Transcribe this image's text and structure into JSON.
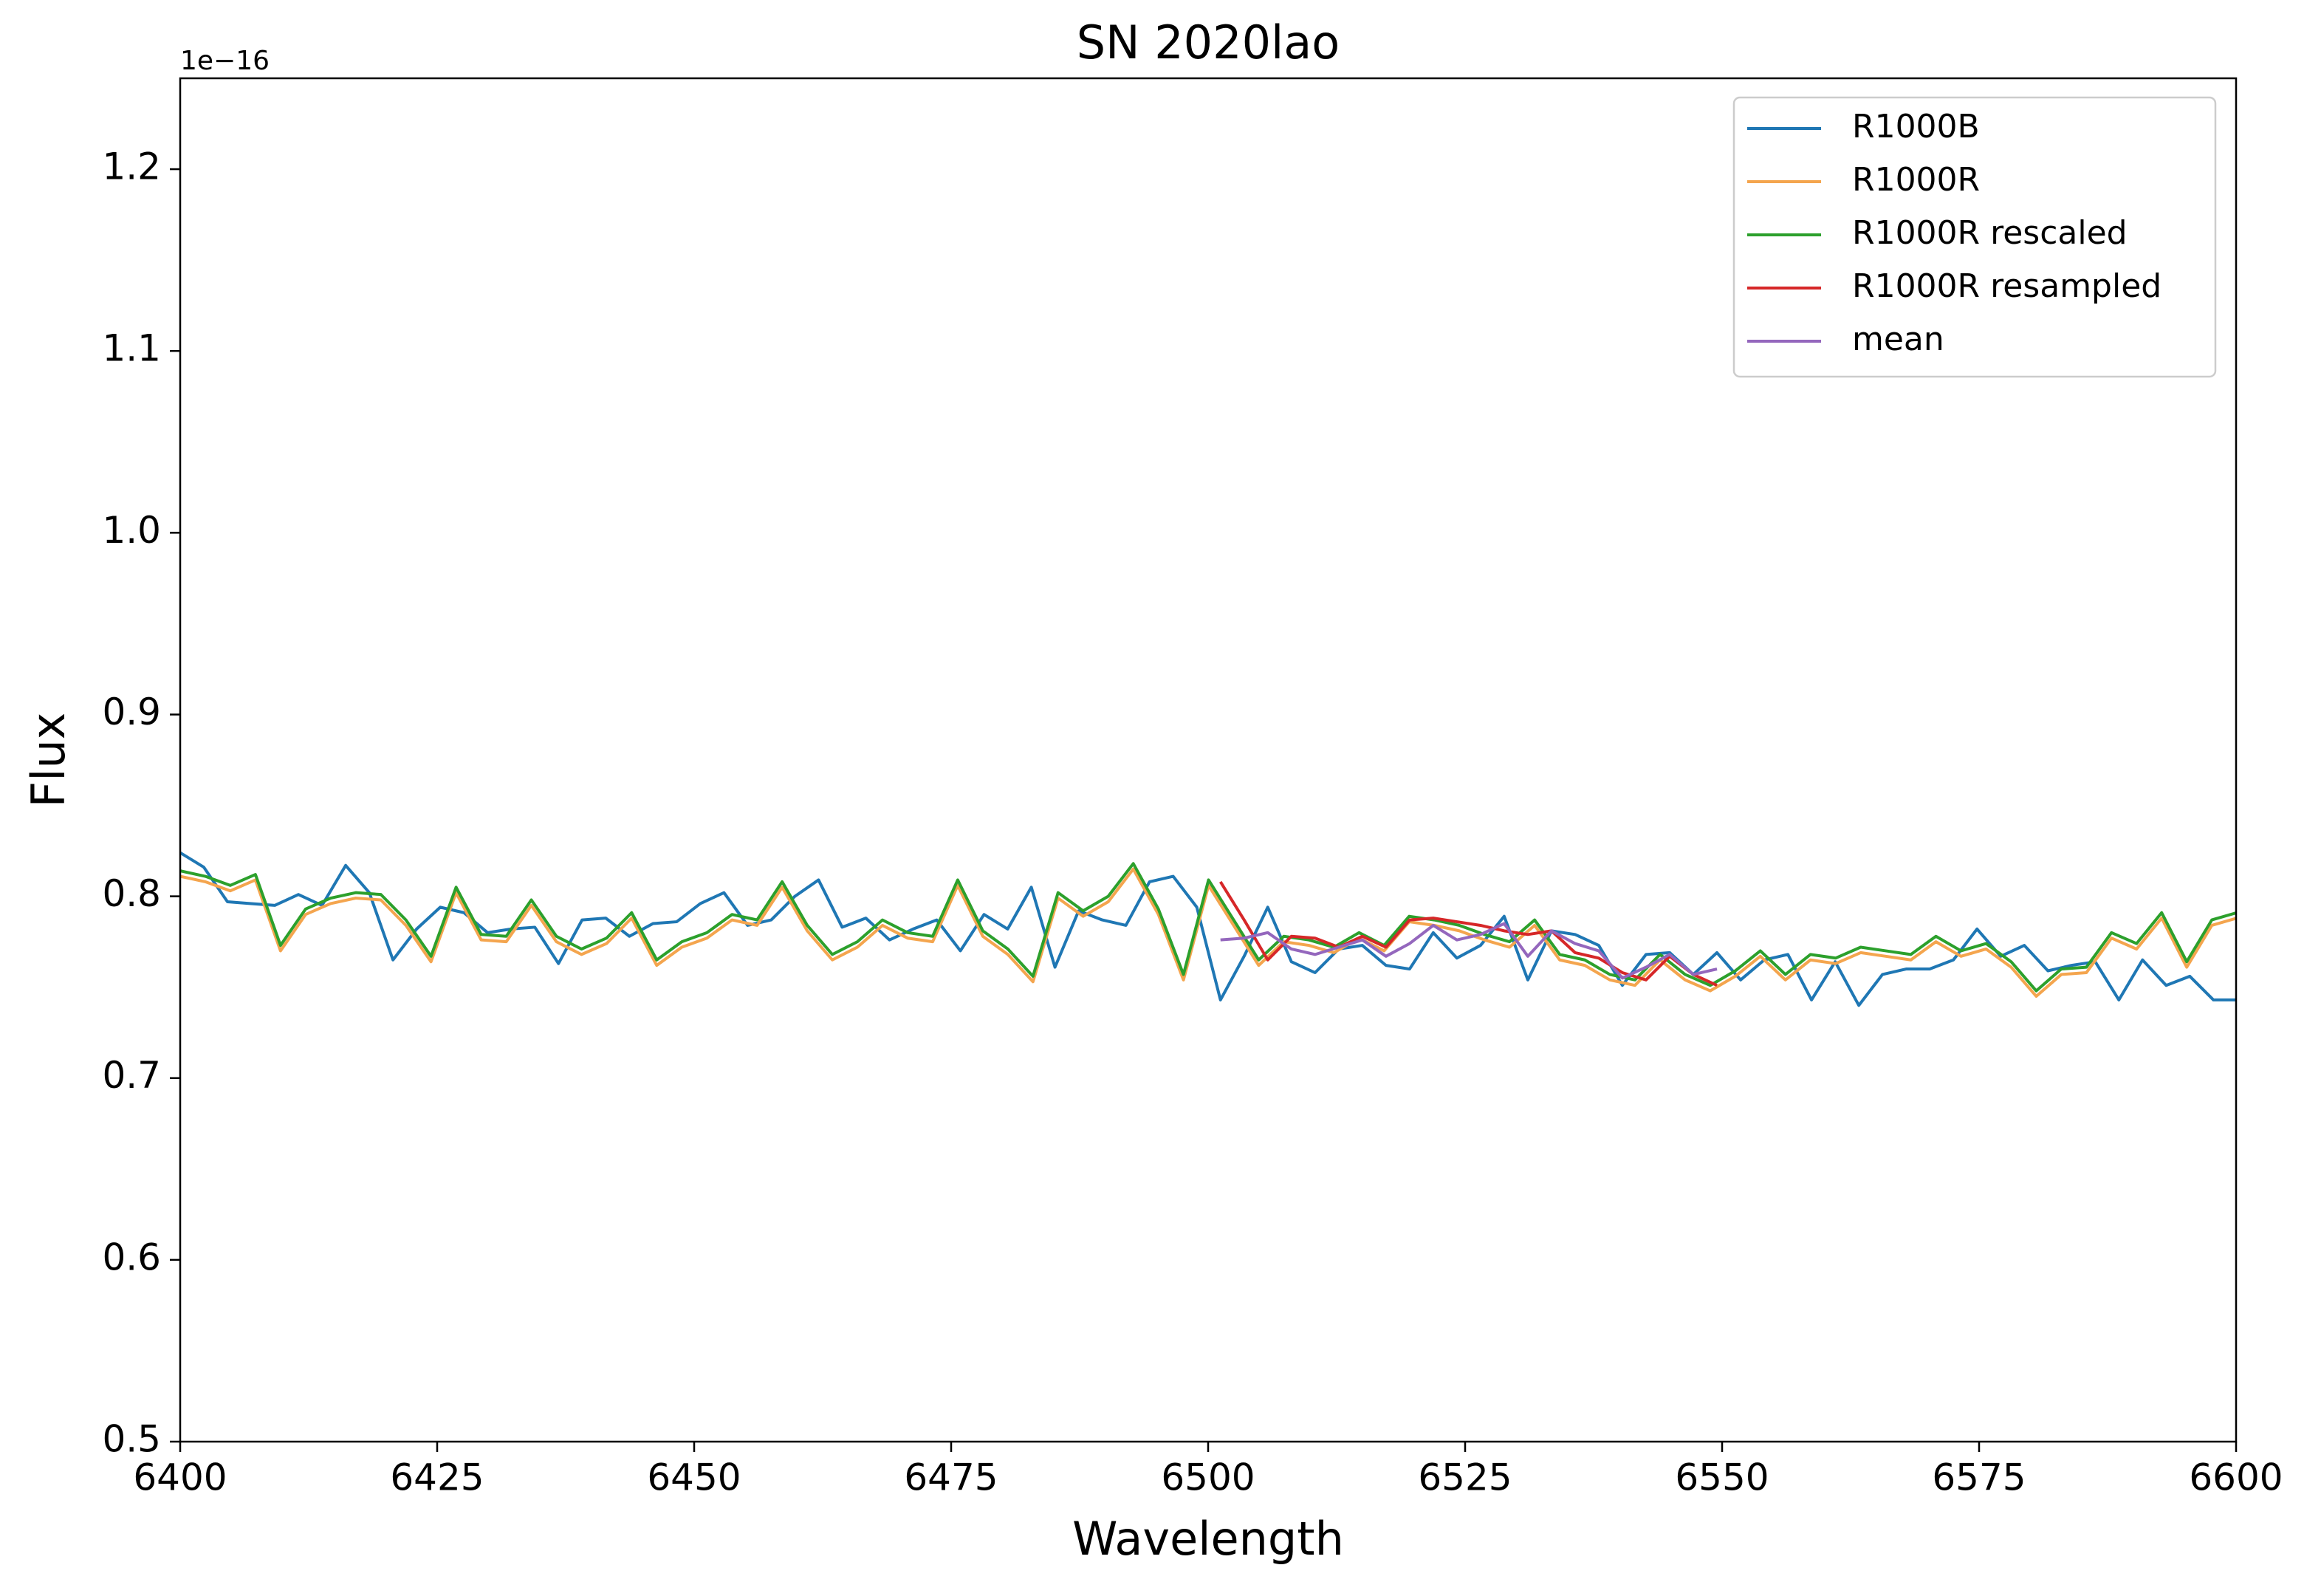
{
  "chart_data": {
    "type": "line",
    "title": "SN 2020lao",
    "x_label": "Wavelength",
    "y_label": "Flux",
    "y_offset_label": "1e−16",
    "xlim": [
      6400,
      6600
    ],
    "xticks": [
      6400,
      6425,
      6450,
      6475,
      6500,
      6525,
      6550,
      6575,
      6600
    ],
    "ylim": [
      0.5,
      1.25
    ],
    "yticks": [
      0.5,
      0.6,
      0.7,
      0.8,
      0.9,
      {
        "value": 1,
        "label": "1.0"
      },
      1.1,
      1.2
    ],
    "legend": "upper right",
    "grid": false,
    "series": [
      {
        "name": "R1000B",
        "color": "#1f77b4",
        "x": [
          6400,
          6402.3,
          6404.6,
          6406.9,
          6409.2,
          6411.5,
          6413.8,
          6416.1,
          6418.4,
          6420.7,
          6423,
          6425.3,
          6427.6,
          6429.9,
          6432.2,
          6434.5,
          6436.8,
          6439.1,
          6441.4,
          6443.7,
          6446,
          6448.3,
          6450.6,
          6452.9,
          6455.2,
          6457.5,
          6459.8,
          6462.1,
          6464.4,
          6466.7,
          6469,
          6471.3,
          6473.6,
          6475.9,
          6478.2,
          6480.5,
          6482.8,
          6485.1,
          6487.4,
          6489.7,
          6492,
          6494.3,
          6496.6,
          6498.9,
          6501.2,
          6503.5,
          6505.8,
          6508.1,
          6510.4,
          6512.7,
          6515,
          6517.3,
          6519.6,
          6521.9,
          6524.2,
          6526.5,
          6528.8,
          6531.1,
          6533.4,
          6535.7,
          6538,
          6540.3,
          6542.6,
          6544.9,
          6547.2,
          6549.5,
          6551.8,
          6554.1,
          6556.4,
          6558.7,
          6561,
          6563.3,
          6565.6,
          6567.9,
          6570.2,
          6572.5,
          6574.8,
          6577.1,
          6579.4,
          6581.7,
          6584,
          6586.3,
          6588.6,
          6590.9,
          6593.2,
          6595.5,
          6597.8,
          6600.1
        ],
        "values": [
          0.824,
          0.816,
          0.797,
          0.796,
          0.795,
          0.801,
          0.795,
          0.817,
          0.802,
          0.765,
          0.782,
          0.794,
          0.791,
          0.78,
          0.782,
          0.783,
          0.763,
          0.787,
          0.788,
          0.778,
          0.785,
          0.786,
          0.796,
          0.802,
          0.784,
          0.787,
          0.8,
          0.809,
          0.783,
          0.788,
          0.776,
          0.782,
          0.787,
          0.77,
          0.79,
          0.782,
          0.805,
          0.761,
          0.792,
          0.787,
          0.784,
          0.808,
          0.811,
          0.794,
          0.743,
          0.767,
          0.794,
          0.764,
          0.758,
          0.771,
          0.773,
          0.762,
          0.76,
          0.78,
          0.766,
          0.773,
          0.789,
          0.754,
          0.781,
          0.779,
          0.773,
          0.751,
          0.768,
          0.769,
          0.757,
          0.769,
          0.754,
          0.765,
          0.768,
          0.743,
          0.764,
          0.74,
          0.757,
          0.76,
          0.76,
          0.765,
          0.782,
          0.767,
          0.773,
          0.759,
          0.762,
          0.764,
          0.743,
          0.765,
          0.751,
          0.756,
          0.743,
          0.743
        ]
      },
      {
        "name": "R1000R",
        "color": "#f4a54e",
        "x": [
          6400,
          6402.44,
          6404.88,
          6407.32,
          6409.76,
          6412.2,
          6414.64,
          6417.08,
          6419.52,
          6421.96,
          6424.4,
          6426.84,
          6429.28,
          6431.72,
          6434.16,
          6436.6,
          6439.04,
          6441.48,
          6443.92,
          6446.36,
          6448.8,
          6451.24,
          6453.68,
          6456.12,
          6458.56,
          6461,
          6463.44,
          6465.88,
          6468.32,
          6470.76,
          6473.2,
          6475.64,
          6478.08,
          6480.52,
          6482.96,
          6485.4,
          6487.84,
          6490.28,
          6492.72,
          6495.16,
          6497.6,
          6500.04,
          6502.48,
          6504.92,
          6507.36,
          6509.8,
          6512.24,
          6514.68,
          6517.12,
          6519.56,
          6522,
          6524.44,
          6526.88,
          6529.32,
          6531.76,
          6534.2,
          6536.64,
          6539.08,
          6541.52,
          6543.96,
          6546.4,
          6548.84,
          6551.28,
          6553.72,
          6556.16,
          6558.6,
          6561.04,
          6563.48,
          6565.92,
          6568.36,
          6570.8,
          6573.24,
          6575.68,
          6578.12,
          6580.56,
          6583,
          6585.44,
          6587.88,
          6590.32,
          6592.76,
          6595.2,
          6597.64,
          6600.08
        ],
        "values": [
          0.811,
          0.808,
          0.803,
          0.809,
          0.77,
          0.79,
          0.796,
          0.799,
          0.798,
          0.784,
          0.764,
          0.802,
          0.776,
          0.775,
          0.795,
          0.775,
          0.768,
          0.774,
          0.788,
          0.762,
          0.772,
          0.777,
          0.787,
          0.784,
          0.805,
          0.781,
          0.765,
          0.772,
          0.784,
          0.777,
          0.775,
          0.806,
          0.778,
          0.768,
          0.753,
          0.799,
          0.789,
          0.797,
          0.815,
          0.79,
          0.754,
          0.806,
          0.784,
          0.762,
          0.775,
          0.773,
          0.769,
          0.777,
          0.77,
          0.786,
          0.784,
          0.781,
          0.776,
          0.772,
          0.784,
          0.765,
          0.762,
          0.754,
          0.751,
          0.765,
          0.754,
          0.748,
          0.756,
          0.767,
          0.754,
          0.765,
          0.763,
          0.769,
          0.767,
          0.765,
          0.775,
          0.767,
          0.771,
          0.761,
          0.745,
          0.757,
          0.758,
          0.777,
          0.771,
          0.788,
          0.761,
          0.784,
          0.788
        ]
      },
      {
        "name": "R1000R rescaled",
        "color": "#2ca02c",
        "x": [
          6400,
          6402.44,
          6404.88,
          6407.32,
          6409.76,
          6412.2,
          6414.64,
          6417.08,
          6419.52,
          6421.96,
          6424.4,
          6426.84,
          6429.28,
          6431.72,
          6434.16,
          6436.6,
          6439.04,
          6441.48,
          6443.92,
          6446.36,
          6448.8,
          6451.24,
          6453.68,
          6456.12,
          6458.56,
          6461,
          6463.44,
          6465.88,
          6468.32,
          6470.76,
          6473.2,
          6475.64,
          6478.08,
          6480.52,
          6482.96,
          6485.4,
          6487.84,
          6490.28,
          6492.72,
          6495.16,
          6497.6,
          6500.04,
          6502.48,
          6504.92,
          6507.36,
          6509.8,
          6512.24,
          6514.68,
          6517.12,
          6519.56,
          6522,
          6524.44,
          6526.88,
          6529.32,
          6531.76,
          6534.2,
          6536.64,
          6539.08,
          6541.52,
          6543.96,
          6546.4,
          6548.84,
          6551.28,
          6553.72,
          6556.16,
          6558.6,
          6561.04,
          6563.48,
          6565.92,
          6568.36,
          6570.8,
          6573.24,
          6575.68,
          6578.12,
          6580.56,
          6583,
          6585.44,
          6587.88,
          6590.32,
          6592.76,
          6595.2,
          6597.64,
          6600.08
        ],
        "values": [
          0.814,
          0.811,
          0.806,
          0.812,
          0.773,
          0.793,
          0.799,
          0.802,
          0.801,
          0.787,
          0.767,
          0.805,
          0.779,
          0.778,
          0.798,
          0.778,
          0.771,
          0.777,
          0.791,
          0.765,
          0.775,
          0.78,
          0.79,
          0.787,
          0.808,
          0.784,
          0.768,
          0.775,
          0.787,
          0.78,
          0.778,
          0.809,
          0.781,
          0.771,
          0.756,
          0.802,
          0.792,
          0.8,
          0.818,
          0.793,
          0.757,
          0.809,
          0.787,
          0.765,
          0.778,
          0.776,
          0.772,
          0.78,
          0.773,
          0.789,
          0.787,
          0.784,
          0.779,
          0.775,
          0.787,
          0.768,
          0.765,
          0.757,
          0.754,
          0.768,
          0.757,
          0.751,
          0.759,
          0.77,
          0.757,
          0.768,
          0.766,
          0.772,
          0.77,
          0.768,
          0.778,
          0.77,
          0.774,
          0.764,
          0.748,
          0.76,
          0.761,
          0.78,
          0.774,
          0.791,
          0.764,
          0.787,
          0.791
        ]
      },
      {
        "name": "R1000R resampled",
        "color": "#d62728",
        "x": [
          6501.2,
          6503.5,
          6505.8,
          6508.1,
          6510.4,
          6512.7,
          6515,
          6517.3,
          6519.6,
          6521.9,
          6524.2,
          6526.5,
          6528.8,
          6531.1,
          6533.4,
          6535.7,
          6538,
          6540.3,
          6542.6,
          6544.9,
          6547.2,
          6549.5
        ],
        "values": [
          0.808,
          0.787,
          0.765,
          0.778,
          0.777,
          0.772,
          0.778,
          0.772,
          0.787,
          0.788,
          0.786,
          0.784,
          0.781,
          0.779,
          0.781,
          0.769,
          0.766,
          0.758,
          0.754,
          0.767,
          0.757,
          0.751
        ]
      },
      {
        "name": "mean",
        "color": "#9467bd",
        "x": [
          6501.2,
          6503.5,
          6505.8,
          6508.1,
          6510.4,
          6512.7,
          6515,
          6517.3,
          6519.6,
          6521.9,
          6524.2,
          6526.5,
          6528.8,
          6531.1,
          6533.4,
          6535.7,
          6538,
          6540.3,
          6542.6,
          6544.9,
          6547.2,
          6549.5
        ],
        "values": [
          0.776,
          0.777,
          0.78,
          0.771,
          0.768,
          0.772,
          0.776,
          0.767,
          0.774,
          0.784,
          0.776,
          0.779,
          0.785,
          0.767,
          0.781,
          0.774,
          0.77,
          0.755,
          0.761,
          0.768,
          0.757,
          0.76
        ]
      }
    ]
  }
}
